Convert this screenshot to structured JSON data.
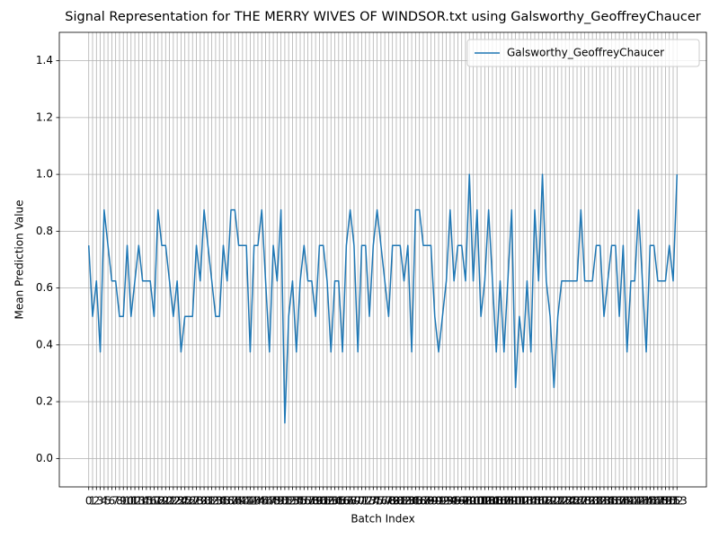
{
  "chart_data": {
    "type": "line",
    "title": "Signal Representation for THE MERRY WIVES OF WINDSOR.txt using Galsworthy_GeoffreyChaucer",
    "x_label": "Batch Index",
    "y_label": "Mean Prediction Value",
    "x": [
      0,
      1,
      2,
      3,
      4,
      5,
      6,
      7,
      8,
      9,
      10,
      11,
      12,
      13,
      14,
      15,
      16,
      17,
      18,
      19,
      20,
      21,
      22,
      23,
      24,
      25,
      26,
      27,
      28,
      29,
      30,
      31,
      32,
      33,
      34,
      35,
      36,
      37,
      38,
      39,
      40,
      41,
      42,
      43,
      44,
      45,
      46,
      47,
      48,
      49,
      50,
      51,
      52,
      53,
      54,
      55,
      56,
      57,
      58,
      59,
      60,
      61,
      62,
      63,
      64,
      65,
      66,
      67,
      68,
      69,
      70,
      71,
      72,
      73,
      74,
      75,
      76,
      77,
      78,
      79,
      80,
      81,
      82,
      83,
      84,
      85,
      86,
      87,
      88,
      89,
      90,
      91,
      92,
      93,
      94,
      95,
      96,
      97,
      98,
      99,
      100,
      101,
      102,
      103,
      104,
      105,
      106,
      107,
      108,
      109,
      110,
      111,
      112,
      113,
      114,
      115,
      116,
      117,
      118,
      119,
      120,
      121,
      122,
      123,
      124,
      125,
      126,
      127,
      128,
      129,
      130,
      131,
      132,
      133,
      134,
      135,
      136,
      137,
      138,
      139,
      140,
      141,
      142,
      143,
      144,
      145,
      146,
      147,
      148,
      149,
      150,
      151,
      152,
      153
    ],
    "series": [
      {
        "name": "Galsworthy_GeoffreyChaucer",
        "color": "#1f77b4",
        "values": [
          0.75,
          0.5,
          0.625,
          0.375,
          0.875,
          0.75,
          0.625,
          0.625,
          0.5,
          0.5,
          0.75,
          0.5,
          0.625,
          0.75,
          0.625,
          0.625,
          0.625,
          0.5,
          0.875,
          0.75,
          0.75,
          0.625,
          0.5,
          0.625,
          0.375,
          0.5,
          0.5,
          0.5,
          0.75,
          0.625,
          0.875,
          0.75,
          0.625,
          0.5,
          0.5,
          0.75,
          0.625,
          0.875,
          0.875,
          0.75,
          0.75,
          0.75,
          0.375,
          0.75,
          0.75,
          0.875,
          0.625,
          0.375,
          0.75,
          0.625,
          0.875,
          0.125,
          0.5,
          0.625,
          0.375,
          0.625,
          0.75,
          0.625,
          0.625,
          0.5,
          0.75,
          0.75,
          0.625,
          0.375,
          0.625,
          0.625,
          0.375,
          0.75,
          0.875,
          0.75,
          0.375,
          0.75,
          0.75,
          0.5,
          0.75,
          0.875,
          0.75,
          0.625,
          0.5,
          0.75,
          0.75,
          0.75,
          0.625,
          0.75,
          0.375,
          0.875,
          0.875,
          0.75,
          0.75,
          0.75,
          0.5,
          0.375,
          0.5,
          0.625,
          0.875,
          0.625,
          0.75,
          0.75,
          0.625,
          1.0,
          0.625,
          0.875,
          0.5,
          0.625,
          0.875,
          0.625,
          0.375,
          0.625,
          0.375,
          0.625,
          0.875,
          0.25,
          0.5,
          0.375,
          0.625,
          0.375,
          0.875,
          0.625,
          1.0,
          0.625,
          0.5,
          0.25,
          0.5,
          0.625,
          0.625,
          0.625,
          0.625,
          0.625,
          0.875,
          0.625,
          0.625,
          0.625,
          0.75,
          0.75,
          0.5,
          0.625,
          0.75,
          0.75,
          0.5,
          0.75,
          0.375,
          0.625,
          0.625,
          0.875,
          0.625,
          0.375,
          0.75,
          0.75,
          0.625,
          0.625,
          0.625,
          0.75,
          0.625,
          1.0
        ]
      }
    ],
    "xlim": [
      -7.65,
      160.65
    ],
    "xticks": [
      0,
      1,
      2,
      3,
      4,
      5,
      6,
      7,
      8,
      9,
      10,
      11,
      12,
      13,
      14,
      15,
      16,
      17,
      18,
      19,
      20,
      21,
      22,
      23,
      24,
      25,
      26,
      27,
      28,
      29,
      30,
      31,
      32,
      33,
      34,
      35,
      36,
      37,
      38,
      39,
      40,
      41,
      42,
      43,
      44,
      45,
      46,
      47,
      48,
      49,
      50,
      51,
      52,
      53,
      54,
      55,
      56,
      57,
      58,
      59,
      60,
      61,
      62,
      63,
      64,
      65,
      66,
      67,
      68,
      69,
      70,
      71,
      72,
      73,
      74,
      75,
      76,
      77,
      78,
      79,
      80,
      81,
      82,
      83,
      84,
      85,
      86,
      87,
      88,
      89,
      90,
      91,
      92,
      93,
      94,
      95,
      96,
      97,
      98,
      99,
      100,
      101,
      102,
      103,
      104,
      105,
      106,
      107,
      108,
      109,
      110,
      111,
      112,
      113,
      114,
      115,
      116,
      117,
      118,
      119,
      120,
      121,
      122,
      123,
      124,
      125,
      126,
      127,
      128,
      129,
      130,
      131,
      132,
      133,
      134,
      135,
      136,
      137,
      138,
      139,
      140,
      141,
      142,
      143,
      144,
      145,
      146,
      147,
      148,
      149,
      150,
      151,
      152,
      153
    ],
    "ylim": [
      -0.1,
      1.5
    ],
    "yticks": [
      {
        "value": 0,
        "label": "0.0"
      },
      {
        "value": 0.2,
        "label": "0.2"
      },
      {
        "value": 0.4,
        "label": "0.4"
      },
      {
        "value": 0.6,
        "label": "0.6"
      },
      {
        "value": 0.8,
        "label": "0.8"
      },
      {
        "value": 1,
        "label": "1.0"
      },
      {
        "value": 1.2,
        "label": "1.2"
      },
      {
        "value": 1.4,
        "label": "1.4"
      }
    ],
    "grid": true,
    "legend": "upper right"
  }
}
